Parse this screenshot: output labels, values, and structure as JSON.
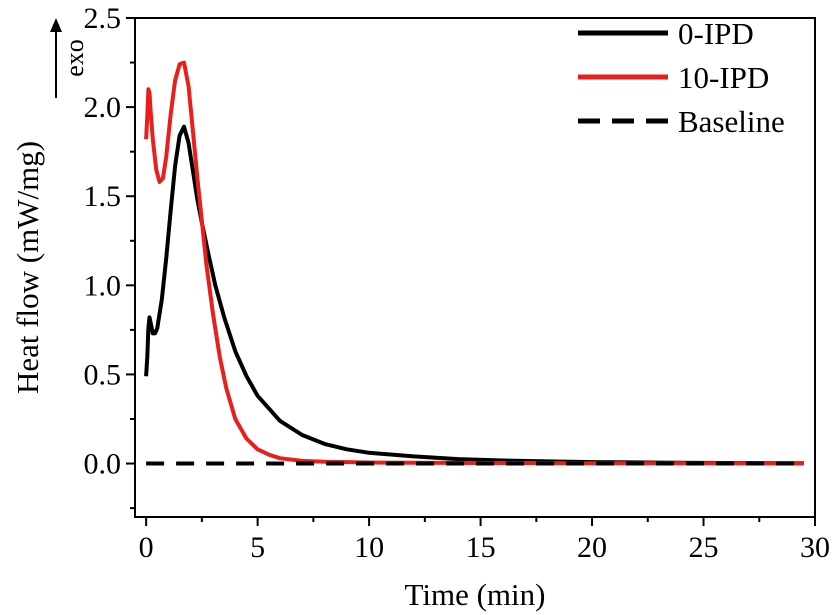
{
  "chart_data": {
    "type": "line",
    "xlabel": "Time (min)",
    "ylabel": "Heat flow (mW/mg)",
    "annotation": "exo",
    "xlim": [
      -0.5,
      30
    ],
    "ylim": [
      -0.3,
      2.5
    ],
    "xticks": [
      0,
      5,
      10,
      15,
      20,
      25,
      30
    ],
    "xtick_labels": [
      "0",
      "5",
      "10",
      "15",
      "20",
      "25",
      "30"
    ],
    "yticks": [
      0.0,
      0.5,
      1.0,
      1.5,
      2.0,
      2.5
    ],
    "ytick_labels": [
      "0.0",
      "0.5",
      "1.0",
      "1.5",
      "2.0",
      "2.5"
    ],
    "legend_position": "top-right",
    "grid": false,
    "series": [
      {
        "name": "0-IPD",
        "color": "#000000",
        "dash": "solid",
        "x": [
          0.0,
          0.05,
          0.1,
          0.15,
          0.2,
          0.3,
          0.4,
          0.5,
          0.7,
          0.9,
          1.1,
          1.3,
          1.5,
          1.7,
          1.9,
          2.1,
          2.3,
          2.5,
          2.8,
          3.1,
          3.5,
          4.0,
          4.5,
          5.0,
          6.0,
          7.0,
          8.0,
          9.0,
          10.0,
          12.0,
          14.0,
          16.0,
          18.0,
          20.0,
          23.0,
          26.0,
          29.5
        ],
        "y": [
          0.49,
          0.6,
          0.76,
          0.82,
          0.79,
          0.73,
          0.73,
          0.76,
          0.92,
          1.15,
          1.42,
          1.67,
          1.84,
          1.89,
          1.8,
          1.64,
          1.48,
          1.35,
          1.17,
          1.0,
          0.82,
          0.63,
          0.49,
          0.38,
          0.24,
          0.16,
          0.11,
          0.08,
          0.06,
          0.04,
          0.025,
          0.017,
          0.012,
          0.008,
          0.005,
          0.003,
          0.002
        ]
      },
      {
        "name": "10-IPD",
        "color": "#e8201c",
        "dash": "solid",
        "x": [
          0.0,
          0.05,
          0.1,
          0.15,
          0.2,
          0.3,
          0.45,
          0.6,
          0.75,
          0.9,
          1.1,
          1.3,
          1.5,
          1.7,
          1.9,
          2.1,
          2.3,
          2.5,
          2.7,
          3.0,
          3.3,
          3.6,
          4.0,
          4.5,
          5.0,
          5.5,
          6.0,
          7.0,
          8.0,
          10.0,
          12.0,
          15.0,
          20.0,
          25.0,
          29.5
        ],
        "y": [
          1.82,
          1.95,
          2.1,
          2.08,
          1.98,
          1.82,
          1.65,
          1.58,
          1.6,
          1.72,
          1.96,
          2.15,
          2.24,
          2.25,
          2.12,
          1.86,
          1.6,
          1.36,
          1.12,
          0.84,
          0.6,
          0.42,
          0.25,
          0.14,
          0.08,
          0.05,
          0.03,
          0.015,
          0.01,
          0.006,
          0.004,
          0.003,
          0.002,
          0.002,
          0.002
        ]
      },
      {
        "name": "Baseline",
        "color": "#000000",
        "dash": "dashed",
        "x": [
          0.0,
          29.5
        ],
        "y": [
          0.0,
          0.0
        ]
      }
    ]
  }
}
